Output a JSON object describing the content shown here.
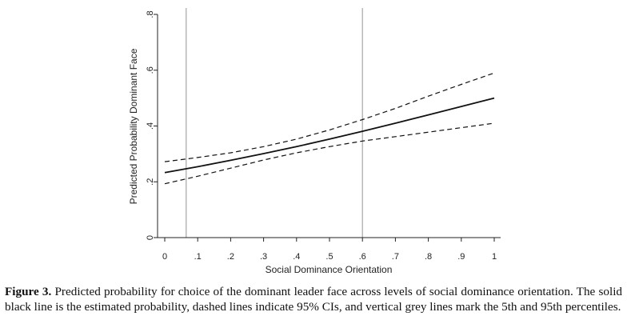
{
  "chart_data": {
    "type": "line",
    "xlabel": "Social Dominance Orientation",
    "ylabel": "Predicted Probability Dominant Face",
    "xlim": [
      0,
      1
    ],
    "ylim": [
      0,
      0.8
    ],
    "x_ticks": [
      0,
      0.1,
      0.2,
      0.3,
      0.4,
      0.5,
      0.6,
      0.7,
      0.8,
      0.9,
      1
    ],
    "x_tick_labels": [
      "0",
      ".1",
      ".2",
      ".3",
      ".4",
      ".5",
      ".6",
      ".7",
      ".8",
      ".9",
      "1"
    ],
    "y_ticks": [
      0,
      0.2,
      0.4,
      0.6,
      0.8
    ],
    "y_tick_labels": [
      "0",
      ".2",
      ".4",
      ".6",
      ".8"
    ],
    "grid": false,
    "vertical_reference_lines": [
      0.065,
      0.6
    ],
    "series": [
      {
        "style": "solid",
        "x": [
          0,
          0.1,
          0.2,
          0.3,
          0.4,
          0.5,
          0.6,
          0.7,
          0.8,
          0.9,
          1
        ],
        "y": [
          0.233,
          0.254,
          0.277,
          0.301,
          0.326,
          0.353,
          0.381,
          0.41,
          0.44,
          0.47,
          0.5
        ]
      },
      {
        "style": "dashed",
        "x": [
          0,
          0.1,
          0.2,
          0.3,
          0.4,
          0.5,
          0.6,
          0.7,
          0.8,
          0.9,
          1
        ],
        "y": [
          0.272,
          0.287,
          0.304,
          0.326,
          0.353,
          0.386,
          0.423,
          0.463,
          0.507,
          0.549,
          0.59
        ]
      },
      {
        "style": "dashed",
        "x": [
          0,
          0.1,
          0.2,
          0.3,
          0.4,
          0.5,
          0.6,
          0.7,
          0.8,
          0.9,
          1
        ],
        "y": [
          0.193,
          0.22,
          0.249,
          0.278,
          0.304,
          0.326,
          0.346,
          0.362,
          0.378,
          0.394,
          0.41
        ]
      }
    ]
  },
  "caption": {
    "label": "Figure 3.",
    "text": "Predicted probability for choice of the dominant leader face across levels of social dominance orientation. The solid black line is the estimated probability, dashed lines indicate 95% CIs, and vertical grey lines mark the 5th and 95th percentiles."
  },
  "colors": {
    "line": "#111111",
    "reference_line": "#a6a6a6",
    "axis": "#222222"
  }
}
